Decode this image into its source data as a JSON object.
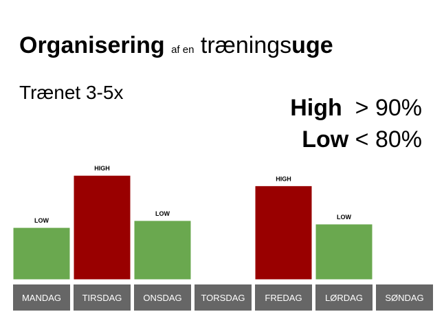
{
  "title": {
    "bold_part": "Organisering",
    "small_part": "af en",
    "regular_part": "trænings",
    "bold_end": "uge"
  },
  "subtitle": "Trænet 3-5x",
  "legend": {
    "high_label": "High",
    "high_value": "> 90%",
    "low_label": "Low",
    "low_value": "< 80%"
  },
  "colors": {
    "high": "#990000",
    "low": "#6aa84f",
    "day_box": "#666666",
    "bar_border": "#ffffff"
  },
  "chart_data": {
    "type": "bar",
    "categories": [
      "MANDAG",
      "TIRSDAG",
      "ONSDAG",
      "TORSDAG",
      "FREDAG",
      "LØRDAG",
      "SØNDAG"
    ],
    "values": [
      3,
      6,
      3.4,
      null,
      5.4,
      3.2,
      null
    ],
    "intensity": [
      "LOW",
      "HIGH",
      "LOW",
      null,
      "HIGH",
      "LOW",
      null
    ]
  }
}
